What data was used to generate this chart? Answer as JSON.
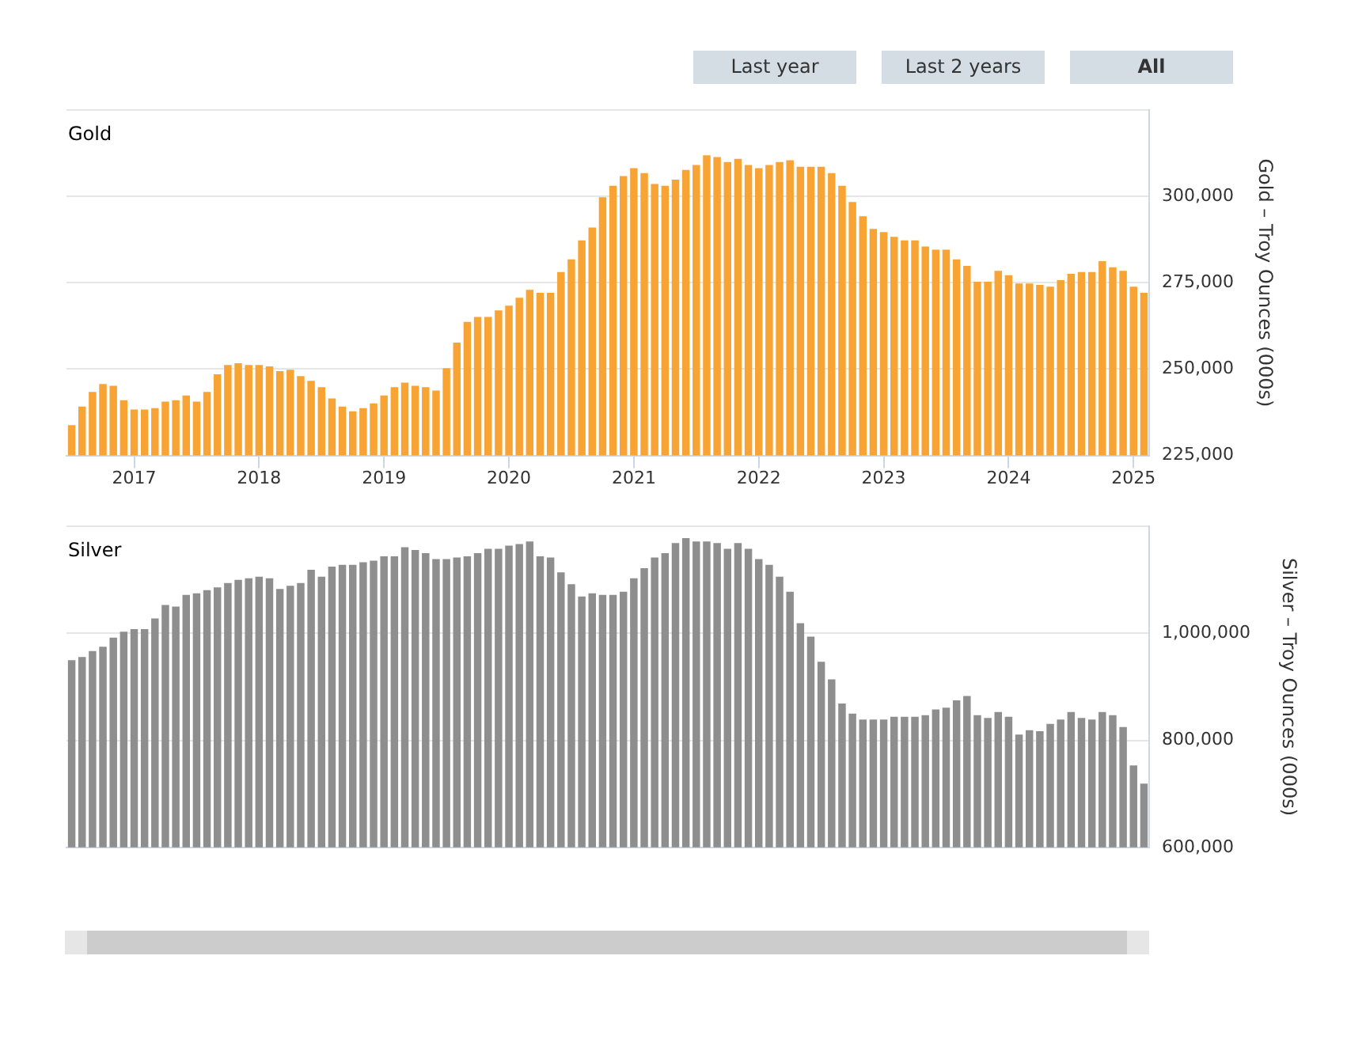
{
  "chart_data": [
    {
      "type": "bar",
      "title": "Gold",
      "ylabel": "Gold – Troy Ounces (000s)",
      "annotations": [
        "Last year",
        "Last 2 years",
        "All"
      ],
      "x": [
        "2016-07",
        "2016-08",
        "2016-09",
        "2016-10",
        "2016-11",
        "2016-12",
        "2017-01",
        "2017-02",
        "2017-03",
        "2017-04",
        "2017-05",
        "2017-06",
        "2017-07",
        "2017-08",
        "2017-09",
        "2017-10",
        "2017-11",
        "2017-12",
        "2018-01",
        "2018-02",
        "2018-03",
        "2018-04",
        "2018-05",
        "2018-06",
        "2018-07",
        "2018-08",
        "2018-09",
        "2018-10",
        "2018-11",
        "2018-12",
        "2019-01",
        "2019-02",
        "2019-03",
        "2019-04",
        "2019-05",
        "2019-06",
        "2019-07",
        "2019-08",
        "2019-09",
        "2019-10",
        "2019-11",
        "2019-12",
        "2020-01",
        "2020-02",
        "2020-03",
        "2020-04",
        "2020-05",
        "2020-06",
        "2020-07",
        "2020-08",
        "2020-09",
        "2020-10",
        "2020-11",
        "2020-12",
        "2021-01",
        "2021-02",
        "2021-03",
        "2021-04",
        "2021-05",
        "2021-06",
        "2021-07",
        "2021-08",
        "2021-09",
        "2021-10",
        "2021-11",
        "2021-12",
        "2022-01",
        "2022-02",
        "2022-03",
        "2022-04",
        "2022-05",
        "2022-06",
        "2022-07",
        "2022-08",
        "2022-09",
        "2022-10",
        "2022-11",
        "2022-12",
        "2023-01",
        "2023-02",
        "2023-03",
        "2023-04",
        "2023-05",
        "2023-06",
        "2023-07",
        "2023-08",
        "2023-09",
        "2023-10",
        "2023-11",
        "2023-12",
        "2024-01",
        "2024-02",
        "2024-03",
        "2024-04",
        "2024-05",
        "2024-06",
        "2024-07",
        "2024-08",
        "2024-09",
        "2024-10",
        "2024-11",
        "2024-12",
        "2025-01",
        "2025-02"
      ],
      "xlim": [
        "2016-07",
        "2025-02"
      ],
      "xticks": [
        {
          "value": "2017-01",
          "label": "2017"
        },
        {
          "value": "2018-01",
          "label": "2018"
        },
        {
          "value": "2019-01",
          "label": "2019"
        },
        {
          "value": "2020-01",
          "label": "2020"
        },
        {
          "value": "2021-01",
          "label": "2021"
        },
        {
          "value": "2022-01",
          "label": "2022"
        },
        {
          "value": "2023-01",
          "label": "2023"
        },
        {
          "value": "2024-01",
          "label": "2024"
        },
        {
          "value": "2025-01",
          "label": "2025"
        }
      ],
      "ylim": [
        225000,
        325000
      ],
      "yticks": [
        {
          "value": 225000,
          "label": "225,000"
        },
        {
          "value": 250000,
          "label": "250,000"
        },
        {
          "value": 275000,
          "label": "275,000"
        },
        {
          "value": 300000,
          "label": "300,000"
        },
        {
          "value": 325000,
          "label": null
        }
      ],
      "grid": "y",
      "series": [
        {
          "color": "#f7a435",
          "values": [
            233800,
            239200,
            243400,
            245700,
            245200,
            241000,
            238300,
            238300,
            238700,
            240600,
            241000,
            242400,
            240600,
            243400,
            248500,
            251200,
            251700,
            251200,
            251200,
            250800,
            249400,
            249800,
            248000,
            246600,
            244800,
            241500,
            239200,
            237800,
            238700,
            240100,
            242400,
            244800,
            246100,
            245200,
            244800,
            243800,
            250300,
            257700,
            263700,
            265100,
            265100,
            267000,
            268400,
            270700,
            273000,
            272100,
            272100,
            278100,
            281800,
            287300,
            291000,
            299800,
            303100,
            305900,
            308200,
            306800,
            303600,
            303100,
            304900,
            307700,
            309100,
            311900,
            311400,
            310000,
            310900,
            309100,
            308200,
            309100,
            310000,
            310500,
            308600,
            308600,
            308600,
            306800,
            303100,
            298400,
            294300,
            290600,
            289700,
            288300,
            287300,
            287300,
            285500,
            284600,
            284600,
            281800,
            279900,
            275300,
            275300,
            278500,
            277200,
            274800,
            274800,
            274400,
            273900,
            275800,
            277600,
            278100,
            278100,
            281300,
            279500,
            278500,
            273900,
            272100
          ]
        }
      ]
    },
    {
      "type": "bar",
      "title": "Silver",
      "ylabel": "Silver – Troy Ounces (000s)",
      "tick_labels": "y",
      "x": [
        "2016-07",
        "2016-08",
        "2016-09",
        "2016-10",
        "2016-11",
        "2016-12",
        "2017-01",
        "2017-02",
        "2017-03",
        "2017-04",
        "2017-05",
        "2017-06",
        "2017-07",
        "2017-08",
        "2017-09",
        "2017-10",
        "2017-11",
        "2017-12",
        "2018-01",
        "2018-02",
        "2018-03",
        "2018-04",
        "2018-05",
        "2018-06",
        "2018-07",
        "2018-08",
        "2018-09",
        "2018-10",
        "2018-11",
        "2018-12",
        "2019-01",
        "2019-02",
        "2019-03",
        "2019-04",
        "2019-05",
        "2019-06",
        "2019-07",
        "2019-08",
        "2019-09",
        "2019-10",
        "2019-11",
        "2019-12",
        "2020-01",
        "2020-02",
        "2020-03",
        "2020-04",
        "2020-05",
        "2020-06",
        "2020-07",
        "2020-08",
        "2020-09",
        "2020-10",
        "2020-11",
        "2020-12",
        "2021-01",
        "2021-02",
        "2021-03",
        "2021-04",
        "2021-05",
        "2021-06",
        "2021-07",
        "2021-08",
        "2021-09",
        "2021-10",
        "2021-11",
        "2021-12",
        "2022-01",
        "2022-02",
        "2022-03",
        "2022-04",
        "2022-05",
        "2022-06",
        "2022-07",
        "2022-08",
        "2022-09",
        "2022-10",
        "2022-11",
        "2022-12",
        "2023-01",
        "2023-02",
        "2023-03",
        "2023-04",
        "2023-05",
        "2023-06",
        "2023-07",
        "2023-08",
        "2023-09",
        "2023-10",
        "2023-11",
        "2023-12",
        "2024-01",
        "2024-02",
        "2024-03",
        "2024-04",
        "2024-05",
        "2024-06",
        "2024-07",
        "2024-08",
        "2024-09",
        "2024-10",
        "2024-11",
        "2024-12",
        "2025-01",
        "2025-02"
      ],
      "xlim": [
        "2016-07",
        "2025-02"
      ],
      "ylim": [
        600000,
        1200000
      ],
      "yticks": [
        {
          "value": 600000,
          "label": "600,000"
        },
        {
          "value": 800000,
          "label": "800,000"
        },
        {
          "value": 1000000,
          "label": "1,000,000"
        },
        {
          "value": 1200000,
          "label": null
        }
      ],
      "grid": "y",
      "series": [
        {
          "color": "#8e8e8e",
          "values": [
            950000,
            956000,
            967000,
            975000,
            992000,
            1003000,
            1008000,
            1008000,
            1028000,
            1053000,
            1050000,
            1072000,
            1075000,
            1081000,
            1086000,
            1094000,
            1100000,
            1103000,
            1106000,
            1103000,
            1083000,
            1089000,
            1094000,
            1119000,
            1106000,
            1125000,
            1128000,
            1128000,
            1133000,
            1136000,
            1144000,
            1144000,
            1161000,
            1156000,
            1150000,
            1139000,
            1139000,
            1142000,
            1144000,
            1150000,
            1158000,
            1158000,
            1164000,
            1167000,
            1172000,
            1144000,
            1142000,
            1114000,
            1092000,
            1069000,
            1075000,
            1072000,
            1072000,
            1078000,
            1103000,
            1122000,
            1142000,
            1150000,
            1169000,
            1178000,
            1172000,
            1172000,
            1169000,
            1158000,
            1169000,
            1158000,
            1139000,
            1128000,
            1106000,
            1078000,
            1019000,
            994000,
            947000,
            914000,
            869000,
            850000,
            839000,
            839000,
            839000,
            844000,
            844000,
            844000,
            847000,
            858000,
            861000,
            875000,
            883000,
            847000,
            842000,
            853000,
            844000,
            811000,
            819000,
            817000,
            831000,
            839000,
            853000,
            842000,
            839000,
            853000,
            847000,
            825000,
            753000,
            719000
          ]
        }
      ]
    }
  ]
}
